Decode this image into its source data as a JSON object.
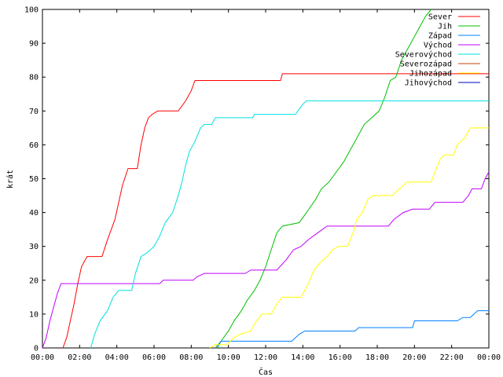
{
  "chart_data": {
    "type": "line",
    "xlabel": "Čas",
    "ylabel": "krát",
    "xlim": [
      0,
      24
    ],
    "ylim": [
      0,
      100
    ],
    "x_ticks": [
      0,
      2,
      4,
      6,
      8,
      10,
      12,
      14,
      16,
      18,
      20,
      22,
      24
    ],
    "x_tick_labels": [
      "00:00",
      "02:00",
      "04:00",
      "06:00",
      "08:00",
      "10:00",
      "12:00",
      "14:00",
      "16:00",
      "18:00",
      "20:00",
      "22:00",
      "00:00"
    ],
    "y_ticks": [
      0,
      10,
      20,
      30,
      40,
      50,
      60,
      70,
      80,
      90,
      100
    ],
    "grid": false,
    "legend_position": "top-right",
    "series": [
      {
        "name": "Sever",
        "color": "#ff0000",
        "points": [
          [
            1.1,
            0
          ],
          [
            1.3,
            3
          ],
          [
            1.5,
            8
          ],
          [
            1.7,
            13
          ],
          [
            1.9,
            19
          ],
          [
            2.1,
            24
          ],
          [
            2.4,
            27
          ],
          [
            3.2,
            27
          ],
          [
            3.5,
            32
          ],
          [
            3.7,
            35
          ],
          [
            3.9,
            38
          ],
          [
            4.1,
            43
          ],
          [
            4.3,
            48
          ],
          [
            4.6,
            53
          ],
          [
            5.1,
            53
          ],
          [
            5.3,
            60
          ],
          [
            5.5,
            65
          ],
          [
            5.7,
            68
          ],
          [
            5.9,
            69
          ],
          [
            6.2,
            70
          ],
          [
            7.3,
            70
          ],
          [
            7.7,
            73
          ],
          [
            8.0,
            76
          ],
          [
            8.2,
            79
          ],
          [
            12.8,
            79
          ],
          [
            12.9,
            81
          ],
          [
            24,
            81
          ]
        ]
      },
      {
        "name": "Jih",
        "color": "#00c000",
        "points": [
          [
            9.3,
            0
          ],
          [
            9.6,
            2
          ],
          [
            10.0,
            5
          ],
          [
            10.3,
            8
          ],
          [
            10.7,
            11
          ],
          [
            11.0,
            14
          ],
          [
            11.4,
            17
          ],
          [
            11.7,
            20
          ],
          [
            12.0,
            24
          ],
          [
            12.3,
            29
          ],
          [
            12.6,
            34
          ],
          [
            12.9,
            36
          ],
          [
            13.8,
            37
          ],
          [
            14.2,
            40
          ],
          [
            14.7,
            44
          ],
          [
            15.0,
            47
          ],
          [
            15.4,
            49
          ],
          [
            15.8,
            52
          ],
          [
            16.2,
            55
          ],
          [
            16.6,
            59
          ],
          [
            17.0,
            63
          ],
          [
            17.3,
            66
          ],
          [
            17.7,
            68
          ],
          [
            18.1,
            70
          ],
          [
            18.4,
            74
          ],
          [
            18.7,
            79
          ],
          [
            19.0,
            80
          ],
          [
            19.3,
            85
          ],
          [
            19.6,
            88
          ],
          [
            20.0,
            92
          ],
          [
            20.3,
            95
          ],
          [
            20.6,
            98
          ],
          [
            20.9,
            100
          ]
        ]
      },
      {
        "name": "Západ",
        "color": "#0080ff",
        "points": [
          [
            9.4,
            0
          ],
          [
            9.6,
            2
          ],
          [
            13.4,
            2
          ],
          [
            13.8,
            4
          ],
          [
            14.1,
            5
          ],
          [
            16.8,
            5
          ],
          [
            17.0,
            6
          ],
          [
            19.9,
            6
          ],
          [
            20.0,
            8
          ],
          [
            22.3,
            8
          ],
          [
            22.6,
            9
          ],
          [
            23.0,
            9
          ],
          [
            23.2,
            10
          ],
          [
            23.4,
            11
          ],
          [
            24,
            11
          ]
        ]
      },
      {
        "name": "Východ",
        "color": "#c000ff",
        "points": [
          [
            0,
            0
          ],
          [
            0.2,
            3
          ],
          [
            0.4,
            8
          ],
          [
            0.6,
            12
          ],
          [
            0.8,
            16
          ],
          [
            1.0,
            19
          ],
          [
            6.3,
            19
          ],
          [
            6.5,
            20
          ],
          [
            8.1,
            20
          ],
          [
            8.3,
            21
          ],
          [
            8.7,
            22
          ],
          [
            10.9,
            22
          ],
          [
            11.2,
            23
          ],
          [
            12.6,
            23
          ],
          [
            13.1,
            26
          ],
          [
            13.5,
            29
          ],
          [
            13.9,
            30
          ],
          [
            14.3,
            32
          ],
          [
            14.8,
            34
          ],
          [
            15.3,
            36
          ],
          [
            18.6,
            36
          ],
          [
            18.9,
            38
          ],
          [
            19.4,
            40
          ],
          [
            19.9,
            41
          ],
          [
            20.8,
            41
          ],
          [
            21.1,
            43
          ],
          [
            22.6,
            43
          ],
          [
            22.9,
            45
          ],
          [
            23.1,
            47
          ],
          [
            23.6,
            47
          ],
          [
            23.8,
            50
          ],
          [
            24,
            52
          ]
        ]
      },
      {
        "name": "Severovýchod",
        "color": "#00e0e0",
        "points": [
          [
            2.6,
            0
          ],
          [
            2.8,
            4
          ],
          [
            3.1,
            8
          ],
          [
            3.5,
            11
          ],
          [
            3.8,
            15
          ],
          [
            4.1,
            17
          ],
          [
            4.8,
            17
          ],
          [
            5.0,
            22
          ],
          [
            5.3,
            27
          ],
          [
            5.6,
            28
          ],
          [
            6.0,
            30
          ],
          [
            6.3,
            33
          ],
          [
            6.6,
            37
          ],
          [
            7.0,
            40
          ],
          [
            7.3,
            45
          ],
          [
            7.5,
            49
          ],
          [
            7.7,
            54
          ],
          [
            7.9,
            58
          ],
          [
            8.2,
            61
          ],
          [
            8.5,
            65
          ],
          [
            8.7,
            66
          ],
          [
            9.1,
            66
          ],
          [
            9.3,
            68
          ],
          [
            11.3,
            68
          ],
          [
            11.4,
            69
          ],
          [
            13.6,
            69
          ],
          [
            14.0,
            72
          ],
          [
            14.2,
            73
          ],
          [
            24,
            73
          ]
        ]
      },
      {
        "name": "Severozápad",
        "color": "#c04000",
        "points": []
      },
      {
        "name": "Jihozápad",
        "color": "#ffff00",
        "points": [
          [
            9.0,
            0
          ],
          [
            9.3,
            1
          ],
          [
            9.9,
            1
          ],
          [
            10.3,
            3
          ],
          [
            10.6,
            4
          ],
          [
            11.2,
            5
          ],
          [
            11.5,
            8
          ],
          [
            11.8,
            10
          ],
          [
            12.3,
            10
          ],
          [
            12.6,
            13
          ],
          [
            12.9,
            15
          ],
          [
            13.9,
            15
          ],
          [
            14.3,
            19
          ],
          [
            14.6,
            23
          ],
          [
            14.9,
            25
          ],
          [
            15.3,
            27
          ],
          [
            15.6,
            29
          ],
          [
            15.9,
            30
          ],
          [
            16.4,
            30
          ],
          [
            16.7,
            34
          ],
          [
            16.9,
            38
          ],
          [
            17.2,
            40
          ],
          [
            17.5,
            44
          ],
          [
            17.8,
            45
          ],
          [
            18.8,
            45
          ],
          [
            19.2,
            47
          ],
          [
            19.6,
            49
          ],
          [
            20.9,
            49
          ],
          [
            21.1,
            52
          ],
          [
            21.4,
            56
          ],
          [
            21.6,
            57
          ],
          [
            22.1,
            57
          ],
          [
            22.3,
            60
          ],
          [
            22.7,
            62
          ],
          [
            23.0,
            65
          ],
          [
            24,
            65
          ]
        ]
      },
      {
        "name": "Jihovýchod",
        "color": "#0000c0",
        "points": []
      }
    ]
  }
}
